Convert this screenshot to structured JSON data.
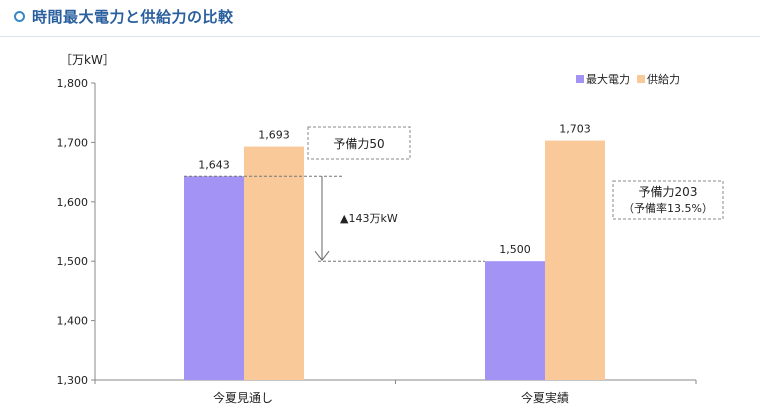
{
  "header": {
    "title": "時間最大電力と供給力の比較",
    "accent": "#3b86c6",
    "title_color": "#2a5f9e"
  },
  "chart_data": {
    "type": "bar",
    "ylabel": "［万kW］",
    "ylim": [
      1300,
      1800
    ],
    "yticks": [
      1300,
      1400,
      1500,
      1600,
      1700,
      1800
    ],
    "ytick_labels": [
      "1,300",
      "1,400",
      "1,500",
      "1,600",
      "1,700",
      "1,800"
    ],
    "categories": [
      "今夏見通し",
      "今夏実績"
    ],
    "series": [
      {
        "name": "最大電力",
        "color": "#a393f5",
        "values": [
          1643,
          1500
        ],
        "labels": [
          "1,643",
          "1,500"
        ]
      },
      {
        "name": "供給力",
        "color": "#f9c99a",
        "values": [
          1693,
          1703
        ],
        "labels": [
          "1,693",
          "1,703"
        ]
      }
    ],
    "legend": "top-right",
    "grid": false,
    "annotations": {
      "reserve_forecast": "予備力50",
      "reserve_actual_line1": "予備力203",
      "reserve_actual_line2": "（予備率13.5%）",
      "difference": "▲143万kW"
    }
  }
}
